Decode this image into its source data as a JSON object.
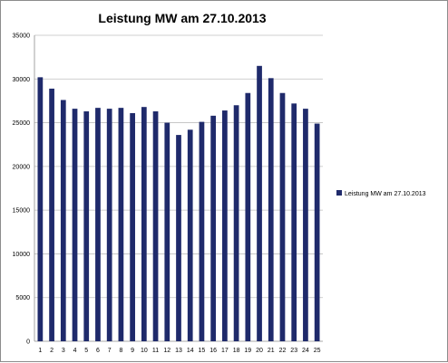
{
  "chart_data": {
    "type": "bar",
    "title": "Leistung MW am 27.10.2013",
    "xlabel": "",
    "ylabel": "",
    "ylim": [
      0,
      35000
    ],
    "yticks": [
      0,
      5000,
      10000,
      15000,
      20000,
      25000,
      30000,
      35000
    ],
    "categories": [
      "1",
      "2",
      "3",
      "4",
      "5",
      "6",
      "7",
      "8",
      "9",
      "10",
      "11",
      "12",
      "13",
      "14",
      "15",
      "16",
      "17",
      "18",
      "19",
      "20",
      "21",
      "22",
      "23",
      "24",
      "25"
    ],
    "series": [
      {
        "name": "Leistung MW am 27.10.2013",
        "color": "#1f2a6b",
        "values": [
          30200,
          28900,
          27600,
          26600,
          26300,
          26700,
          26600,
          26700,
          26100,
          26800,
          26300,
          25000,
          23600,
          24200,
          25100,
          25800,
          26400,
          27000,
          28400,
          31500,
          30100,
          28400,
          27200,
          26600,
          24900
        ]
      }
    ],
    "grid": true,
    "legend": "right"
  }
}
